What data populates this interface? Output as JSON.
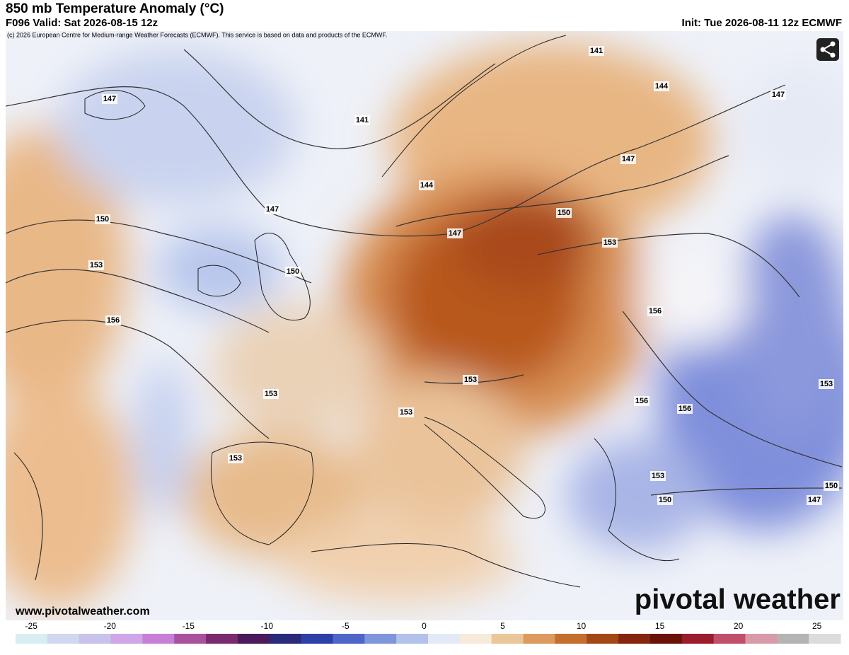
{
  "header": {
    "title": "850 mb Temperature Anomaly (°C)",
    "valid": "F096 Valid: Sat 2026-08-15 12z",
    "init": "Init: Tue 2026-08-11 12z ECMWF",
    "copyright": "(c) 2026 European Centre for Medium-range Weather Forecasts (ECMWF). This service is based on data and products of the ECMWF."
  },
  "map": {
    "contour_labels": [
      147,
      141,
      141,
      144,
      147,
      144,
      147,
      147,
      150,
      147,
      150,
      153,
      153,
      150,
      156,
      156,
      153,
      153,
      153,
      156,
      156,
      153,
      153,
      153,
      150,
      150,
      147
    ]
  },
  "footer": {
    "website": "www.pivotalweather.com",
    "logo": "pivotal weather"
  },
  "colorbar": {
    "lim": [
      -26,
      26.5
    ],
    "ticks": [
      -25,
      -20,
      -15,
      -10,
      -5,
      0,
      5,
      10,
      15,
      20,
      25
    ],
    "colors": [
      "#d8eef2",
      "#cfd8ee",
      "#c9c3ec",
      "#cfa6e6",
      "#c77fd8",
      "#a8529e",
      "#7a2a6e",
      "#4a1a5a",
      "#2a2a7a",
      "#2f3fa8",
      "#4d66c8",
      "#7f96da",
      "#b3c2ea",
      "#e3e9f6",
      "#f6eadb",
      "#ebc69b",
      "#dc9a5e",
      "#c46e30",
      "#a34717",
      "#85250d",
      "#6a1208",
      "#9b1c2a",
      "#c0506a",
      "#d89aa8",
      "#b4b4b4",
      "#dcdcdc"
    ]
  }
}
